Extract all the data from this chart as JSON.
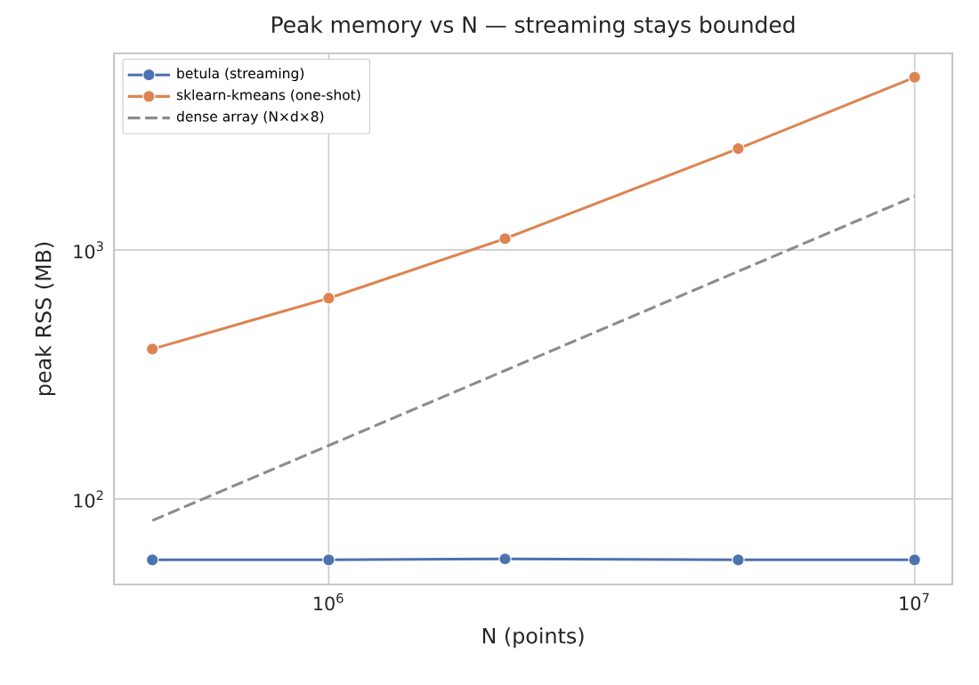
{
  "chart_data": {
    "type": "line",
    "title": "Peak memory vs N — streaming stays bounded",
    "xlabel": "N (points)",
    "ylabel": "peak RSS (MB)",
    "x": [
      500000,
      1000000,
      2000000,
      5000000,
      10000000
    ],
    "series": [
      {
        "name": "betula (streaming)",
        "color": "#4c72b0",
        "values": [
          57,
          57,
          57.5,
          57,
          57
        ],
        "marker": "circle",
        "line_style": "solid"
      },
      {
        "name": "sklearn-kmeans (one-shot)",
        "color": "#dd8452",
        "values": [
          400,
          640,
          1110,
          2550,
          4930
        ],
        "marker": "circle",
        "line_style": "solid"
      },
      {
        "name": "dense array (N×d×8)",
        "color": "#8c8c8c",
        "x": [
          500000,
          10000000
        ],
        "values": [
          82,
          1640
        ],
        "marker": "none",
        "line_style": "dashed"
      }
    ],
    "log": "xy",
    "grid": true,
    "legend": "top left",
    "xlim": [
      430000,
      11600000
    ],
    "ylim": [
      45.4,
      6150
    ],
    "xticks": [
      {
        "value": 1000000,
        "label": "10$^{6}$"
      },
      {
        "value": 10000000,
        "label": "10$^{7}$"
      }
    ],
    "yticks": [
      {
        "value": 100,
        "label": "10$^{2}$"
      },
      {
        "value": 1000,
        "label": "10$^{3}$"
      }
    ]
  }
}
